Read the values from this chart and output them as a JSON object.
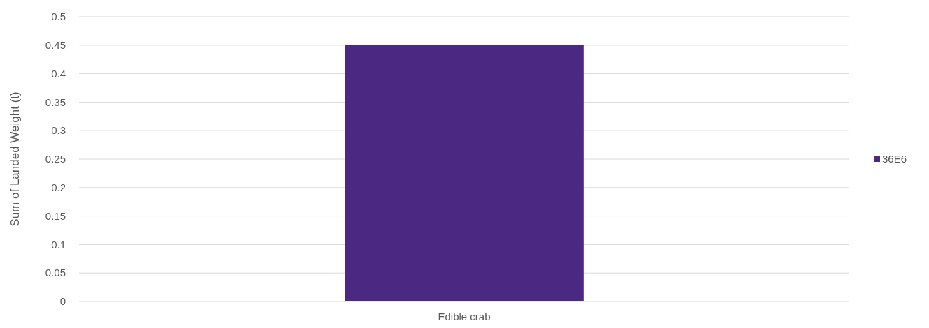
{
  "chart_data": {
    "type": "bar",
    "ylabel": "Sum of Landed Weight (t)",
    "categories": [
      "Edible crab"
    ],
    "series": [
      {
        "name": "36E6",
        "color": "#4b2882",
        "values": [
          0.45
        ]
      }
    ],
    "ylim": [
      0,
      0.5
    ],
    "yticks": [
      0,
      0.05,
      0.1,
      0.15,
      0.2,
      0.25,
      0.3,
      0.35,
      0.4,
      0.45,
      0.5
    ],
    "grid": "y",
    "legend": "right"
  }
}
